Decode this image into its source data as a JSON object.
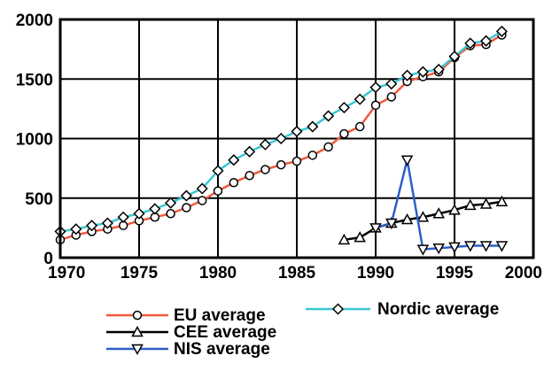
{
  "chart_data": {
    "type": "line",
    "title": "",
    "xlabel": "",
    "ylabel": "",
    "xlim": [
      1970,
      2000
    ],
    "ylim": [
      0,
      2000
    ],
    "x_ticks": [
      1970,
      1975,
      1980,
      1985,
      1990,
      1995,
      2000
    ],
    "y_ticks": [
      0,
      500,
      1000,
      1500,
      2000
    ],
    "grid": true,
    "legend": "bottom",
    "series": [
      {
        "name": "EU average",
        "color": "#f05a3c",
        "marker": "circle",
        "x": [
          1970,
          1971,
          1972,
          1973,
          1974,
          1975,
          1976,
          1977,
          1978,
          1979,
          1980,
          1981,
          1982,
          1983,
          1984,
          1985,
          1986,
          1987,
          1988,
          1989,
          1990,
          1991,
          1992,
          1993,
          1994,
          1995,
          1996,
          1997,
          1998
        ],
        "y": [
          150,
          190,
          220,
          240,
          270,
          310,
          340,
          370,
          420,
          480,
          560,
          630,
          690,
          740,
          780,
          810,
          860,
          930,
          1040,
          1100,
          1280,
          1350,
          1480,
          1520,
          1560,
          1680,
          1780,
          1790,
          1870
        ]
      },
      {
        "name": "Nordic average",
        "color": "#3cc8d2",
        "marker": "diamond",
        "x": [
          1970,
          1971,
          1972,
          1973,
          1974,
          1975,
          1976,
          1977,
          1978,
          1979,
          1980,
          1981,
          1982,
          1983,
          1984,
          1985,
          1986,
          1987,
          1988,
          1989,
          1990,
          1991,
          1992,
          1993,
          1994,
          1995,
          1996,
          1997,
          1998
        ],
        "y": [
          220,
          240,
          270,
          290,
          340,
          370,
          410,
          460,
          520,
          580,
          730,
          820,
          890,
          950,
          1000,
          1060,
          1100,
          1190,
          1260,
          1330,
          1430,
          1460,
          1530,
          1560,
          1580,
          1690,
          1800,
          1820,
          1900
        ]
      },
      {
        "name": "CEE average",
        "color": "#000000",
        "marker": "triangle-up",
        "x": [
          1988,
          1989,
          1990,
          1991,
          1992,
          1993,
          1994,
          1995,
          1996,
          1997,
          1998
        ],
        "y": [
          150,
          170,
          250,
          290,
          320,
          340,
          370,
          400,
          440,
          450,
          470
        ]
      },
      {
        "name": "NIS average",
        "color": "#2c5fc8",
        "marker": "triangle-down",
        "x": [
          1990,
          1991,
          1992,
          1993,
          1994,
          1995,
          1996,
          1997,
          1998
        ],
        "y": [
          250,
          290,
          820,
          70,
          80,
          90,
          100,
          100,
          100
        ]
      }
    ]
  }
}
